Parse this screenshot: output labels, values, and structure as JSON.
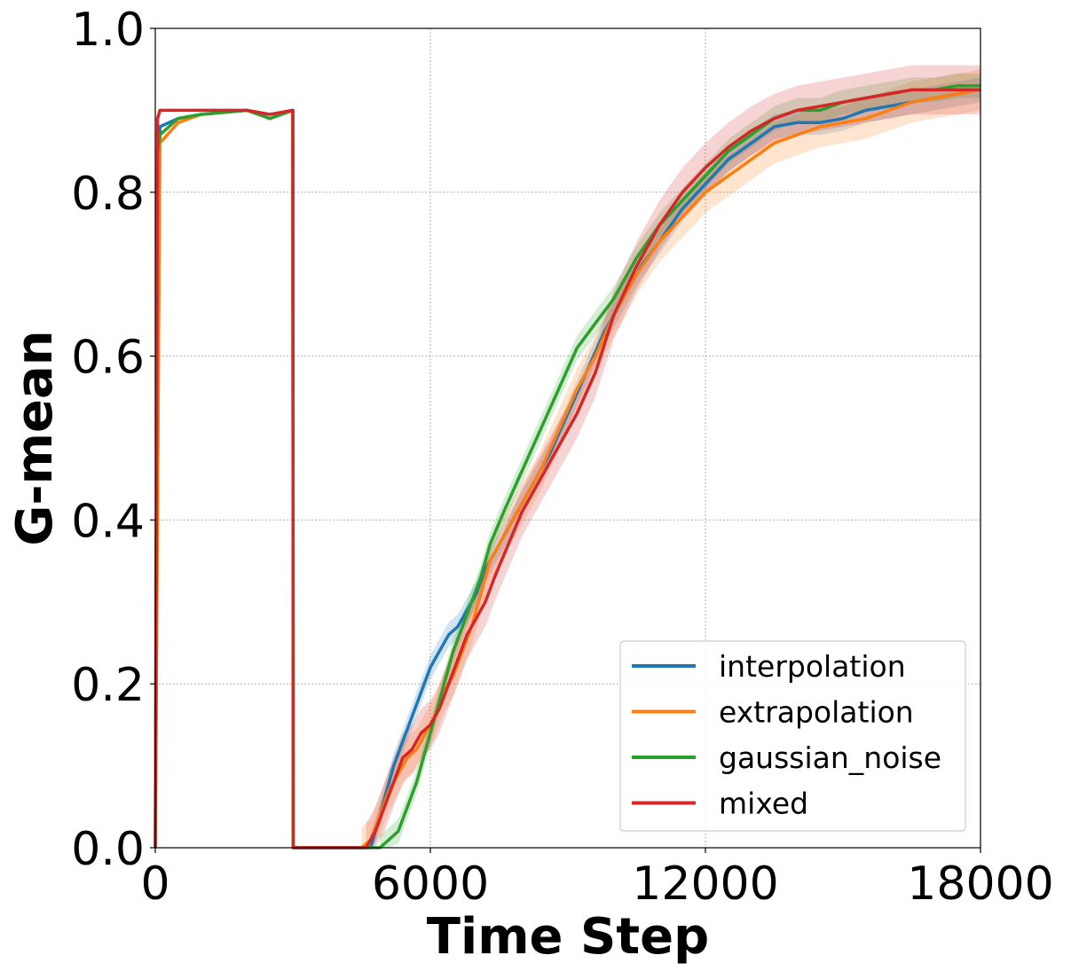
{
  "chart_data": {
    "type": "line",
    "xlabel": "Time Step",
    "ylabel": "G-mean",
    "xlim": [
      0,
      18000
    ],
    "ylim": [
      0.0,
      1.0
    ],
    "xticks": [
      "0",
      "6000",
      "12000",
      "18000"
    ],
    "yticks": [
      "0.0",
      "0.2",
      "0.4",
      "0.6",
      "0.8",
      "1.0"
    ],
    "grid": true,
    "legend_position": "lower-right",
    "shaded_band": true,
    "series": [
      {
        "name": "interpolation",
        "color": "#1f77b4",
        "x": [
          0,
          100,
          500,
          1000,
          2000,
          2500,
          3000,
          3010,
          4700,
          4800,
          5000,
          5200,
          5400,
          5600,
          5800,
          6000,
          6200,
          6400,
          6600,
          6800,
          7000,
          7200,
          7500,
          7800,
          8200,
          8600,
          9000,
          9400,
          9800,
          10200,
          10600,
          11000,
          11500,
          12000,
          12500,
          13000,
          13500,
          14000,
          14500,
          15000,
          15500,
          16000,
          16500,
          17000,
          17500,
          18000
        ],
        "y": [
          0.0,
          0.88,
          0.89,
          0.895,
          0.9,
          0.89,
          0.9,
          0.0,
          0.0,
          0.02,
          0.06,
          0.1,
          0.13,
          0.16,
          0.19,
          0.22,
          0.24,
          0.26,
          0.27,
          0.29,
          0.31,
          0.34,
          0.37,
          0.4,
          0.44,
          0.48,
          0.53,
          0.58,
          0.63,
          0.67,
          0.71,
          0.74,
          0.78,
          0.81,
          0.84,
          0.86,
          0.88,
          0.885,
          0.885,
          0.89,
          0.9,
          0.905,
          0.91,
          0.915,
          0.92,
          0.925
        ],
        "band": 0.015
      },
      {
        "name": "extrapolation",
        "color": "#ff7f0e",
        "x": [
          0,
          100,
          500,
          1000,
          2000,
          2500,
          3000,
          3010,
          4500,
          4700,
          4900,
          5100,
          5300,
          5500,
          5700,
          5900,
          6100,
          6300,
          6500,
          6700,
          6900,
          7100,
          7300,
          7600,
          8000,
          8400,
          8800,
          9200,
          9600,
          10000,
          10500,
          11000,
          11500,
          12000,
          12500,
          13000,
          13500,
          14000,
          14500,
          15000,
          15500,
          16000,
          16500,
          17000,
          17500,
          18000
        ],
        "y": [
          0.0,
          0.86,
          0.885,
          0.895,
          0.9,
          0.89,
          0.9,
          0.0,
          0.0,
          0.01,
          0.04,
          0.07,
          0.09,
          0.11,
          0.12,
          0.14,
          0.16,
          0.19,
          0.21,
          0.24,
          0.27,
          0.31,
          0.35,
          0.38,
          0.42,
          0.46,
          0.51,
          0.56,
          0.6,
          0.65,
          0.7,
          0.74,
          0.77,
          0.8,
          0.82,
          0.84,
          0.86,
          0.87,
          0.88,
          0.885,
          0.89,
          0.9,
          0.91,
          0.915,
          0.92,
          0.925
        ],
        "band": 0.025
      },
      {
        "name": "gaussian_noise",
        "color": "#2ca02c",
        "x": [
          0,
          50,
          100,
          500,
          1000,
          2000,
          2500,
          3000,
          3010,
          4900,
          5100,
          5300,
          5500,
          5700,
          5900,
          6100,
          6300,
          6500,
          6700,
          6900,
          7100,
          7300,
          7600,
          8000,
          8400,
          8800,
          9200,
          9600,
          10000,
          10500,
          11000,
          11500,
          12000,
          12500,
          13000,
          13500,
          14000,
          14500,
          15000,
          15500,
          16000,
          16500,
          17000,
          17500,
          18000
        ],
        "y": [
          0.0,
          0.85,
          0.87,
          0.89,
          0.895,
          0.9,
          0.89,
          0.9,
          0.0,
          0.0,
          0.01,
          0.02,
          0.05,
          0.08,
          0.12,
          0.16,
          0.2,
          0.24,
          0.27,
          0.3,
          0.33,
          0.37,
          0.41,
          0.46,
          0.51,
          0.56,
          0.61,
          0.64,
          0.67,
          0.72,
          0.76,
          0.79,
          0.82,
          0.85,
          0.87,
          0.89,
          0.9,
          0.9,
          0.91,
          0.915,
          0.92,
          0.925,
          0.925,
          0.93,
          0.93
        ],
        "band": 0.015
      },
      {
        "name": "mixed",
        "color": "#d62728",
        "x": [
          0,
          50,
          100,
          500,
          1000,
          2000,
          2500,
          3000,
          3010,
          4600,
          4800,
          5000,
          5200,
          5400,
          5600,
          5800,
          6000,
          6200,
          6400,
          6600,
          6800,
          7000,
          7200,
          7400,
          7700,
          8000,
          8400,
          8800,
          9200,
          9600,
          10000,
          10500,
          11000,
          11500,
          12000,
          12500,
          13000,
          13500,
          14000,
          14500,
          15000,
          15500,
          16000,
          16500,
          17000,
          17500,
          18000
        ],
        "y": [
          0.0,
          0.89,
          0.9,
          0.9,
          0.9,
          0.9,
          0.895,
          0.9,
          0.0,
          0.0,
          0.02,
          0.05,
          0.08,
          0.11,
          0.12,
          0.14,
          0.15,
          0.17,
          0.2,
          0.23,
          0.26,
          0.28,
          0.3,
          0.33,
          0.37,
          0.41,
          0.45,
          0.49,
          0.53,
          0.58,
          0.65,
          0.71,
          0.76,
          0.8,
          0.83,
          0.855,
          0.875,
          0.89,
          0.9,
          0.905,
          0.91,
          0.915,
          0.92,
          0.925,
          0.925,
          0.925,
          0.925
        ],
        "band": 0.03
      }
    ]
  }
}
